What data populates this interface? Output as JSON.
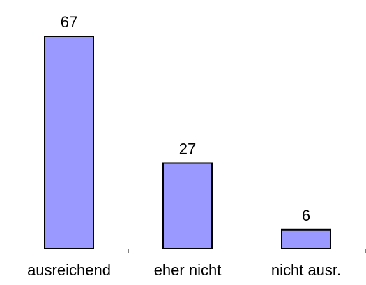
{
  "chart_data": {
    "type": "bar",
    "categories": [
      "ausreichend",
      "eher nicht",
      "nicht ausr."
    ],
    "values": [
      67,
      27,
      6
    ],
    "data_labels": [
      "67",
      "27",
      "6"
    ],
    "title": "",
    "xlabel": "",
    "ylabel": "",
    "ylim": [
      0,
      67
    ],
    "grid": false,
    "legend": "none",
    "bar_color": "#9999ff",
    "bar_border_color": "#000000",
    "axis_color": "#808080"
  }
}
